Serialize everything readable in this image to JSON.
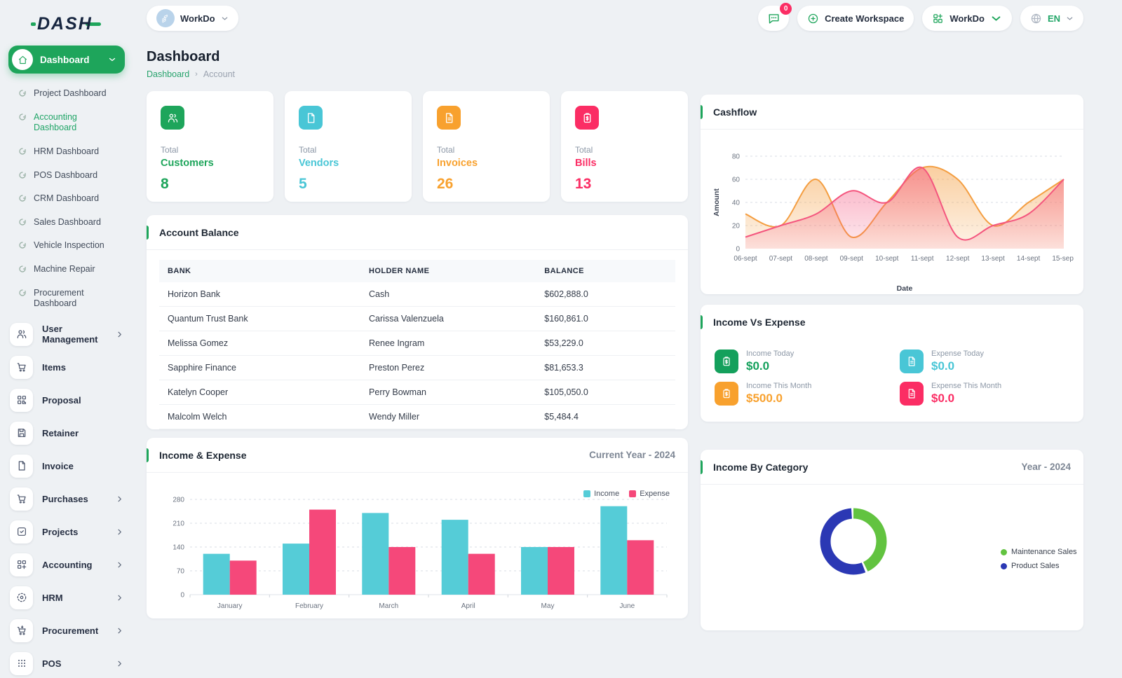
{
  "app": {
    "logo_text": "DASH"
  },
  "topbar": {
    "workspace_pill": "WorkDo",
    "messages_badge": "0",
    "create_workspace_label": "Create Workspace",
    "workdo_label": "WorkDo",
    "language": "EN"
  },
  "sidebar": {
    "active_item": "Dashboard",
    "sub_items": [
      {
        "label": "Project Dashboard",
        "active": false
      },
      {
        "label": "Accounting Dashboard",
        "active": true
      },
      {
        "label": "HRM Dashboard",
        "active": false
      },
      {
        "label": "POS Dashboard",
        "active": false
      },
      {
        "label": "CRM Dashboard",
        "active": false
      },
      {
        "label": "Sales Dashboard",
        "active": false
      },
      {
        "label": "Vehicle Inspection",
        "active": false
      },
      {
        "label": "Machine Repair",
        "active": false
      },
      {
        "label": "Procurement Dashboard",
        "active": false
      }
    ],
    "main_items": [
      {
        "label": "User Management",
        "icon": "users-icon",
        "has_children": true
      },
      {
        "label": "Items",
        "icon": "cart-icon",
        "has_children": false
      },
      {
        "label": "Proposal",
        "icon": "qr-icon",
        "has_children": false
      },
      {
        "label": "Retainer",
        "icon": "save-icon",
        "has_children": false
      },
      {
        "label": "Invoice",
        "icon": "file-icon",
        "has_children": false
      },
      {
        "label": "Purchases",
        "icon": "cart-icon",
        "has_children": true
      },
      {
        "label": "Projects",
        "icon": "check-square-icon",
        "has_children": true
      },
      {
        "label": "Accounting",
        "icon": "grid-plus-icon",
        "has_children": true
      },
      {
        "label": "HRM",
        "icon": "target-icon",
        "has_children": true
      },
      {
        "label": "Procurement",
        "icon": "cart-arrow-icon",
        "has_children": true
      },
      {
        "label": "POS",
        "icon": "dots-grid-icon",
        "has_children": true
      }
    ]
  },
  "page": {
    "title": "Dashboard",
    "breadcrumb_home": "Dashboard",
    "breadcrumb_current": "Account"
  },
  "stats_cards": [
    {
      "label": "Total",
      "name": "Customers",
      "value": "8",
      "color": "#1ea55b",
      "icon": "users-icon"
    },
    {
      "label": "Total",
      "name": "Vendors",
      "value": "5",
      "color": "#49c6d6",
      "icon": "note-icon"
    },
    {
      "label": "Total",
      "name": "Invoices",
      "value": "26",
      "color": "#f8a12e",
      "icon": "file-lines-icon"
    },
    {
      "label": "Total",
      "name": "Bills",
      "value": "13",
      "color": "#fb2d64",
      "icon": "clipboard-dollar-icon"
    }
  ],
  "account_balance": {
    "title": "Account Balance",
    "columns": [
      "BANK",
      "HOLDER NAME",
      "BALANCE"
    ],
    "rows": [
      [
        "Horizon Bank",
        "Cash",
        "$602,888.0"
      ],
      [
        "Quantum Trust Bank",
        "Carissa Valenzuela",
        "$160,861.0"
      ],
      [
        "Melissa Gomez",
        "Renee Ingram",
        "$53,229.0"
      ],
      [
        "Sapphire Finance",
        "Preston Perez",
        "$81,653.3"
      ],
      [
        "Katelyn Cooper",
        "Perry Bowman",
        "$105,050.0"
      ],
      [
        "Malcolm Welch",
        "Wendy Miller",
        "$5,484.4"
      ]
    ]
  },
  "income_vs_expense": {
    "title": "Income Vs Expense",
    "items": [
      {
        "label": "Income Today",
        "value": "$0.0",
        "color": "#14a05c",
        "icon": "clipboard-dollar-icon"
      },
      {
        "label": "Expense Today",
        "value": "$0.0",
        "color": "#49c6d6",
        "icon": "file-lines-icon"
      },
      {
        "label": "Income This Month",
        "value": "$500.0",
        "color": "#f8a12e",
        "icon": "clipboard-dollar-icon"
      },
      {
        "label": "Expense This Month",
        "value": "$0.0",
        "color": "#fb2d64",
        "icon": "file-lines-icon"
      }
    ]
  },
  "chart_data": [
    {
      "id": "cashflow",
      "type": "area",
      "title": "Cashflow",
      "x": [
        "06-sept",
        "07-sept",
        "08-sept",
        "09-sept",
        "10-sept",
        "11-sept",
        "12-sept",
        "13-sept",
        "14-sept",
        "15-sept"
      ],
      "series": [
        {
          "color": "#f49e41",
          "values": [
            30,
            20,
            60,
            10,
            40,
            70,
            60,
            20,
            40,
            60
          ]
        },
        {
          "color": "#f4557e",
          "values": [
            10,
            20,
            30,
            50,
            40,
            70,
            10,
            20,
            30,
            60
          ]
        }
      ],
      "xlabel": "Date",
      "ylabel": "Amount",
      "ylim": [
        0,
        80
      ],
      "yticks": [
        0,
        20,
        40,
        60,
        80
      ],
      "grid": "dashed"
    },
    {
      "id": "income_expense",
      "type": "bar",
      "title": "Income & Expense",
      "subtitle": "Current Year - 2024",
      "categories": [
        "January",
        "February",
        "March",
        "April",
        "May",
        "June"
      ],
      "series": [
        {
          "name": "Income",
          "color": "#55ccd7",
          "values": [
            120,
            150,
            240,
            220,
            140,
            260
          ]
        },
        {
          "name": "Expense",
          "color": "#f5487a",
          "values": [
            100,
            250,
            140,
            120,
            140,
            160
          ]
        }
      ],
      "ylim": [
        0,
        280
      ],
      "yticks": [
        0,
        70,
        140,
        210,
        280
      ],
      "legend_position": "top-right",
      "grid": "dashed"
    },
    {
      "id": "income_by_category",
      "type": "donut",
      "title": "Income By Category",
      "subtitle": "Year - 2024",
      "labels": [
        "Maintenance Sales",
        "Product Sales"
      ],
      "values": [
        44,
        56
      ],
      "colors": [
        "#62c340",
        "#2b38b4"
      ],
      "legend_position": "right"
    }
  ]
}
